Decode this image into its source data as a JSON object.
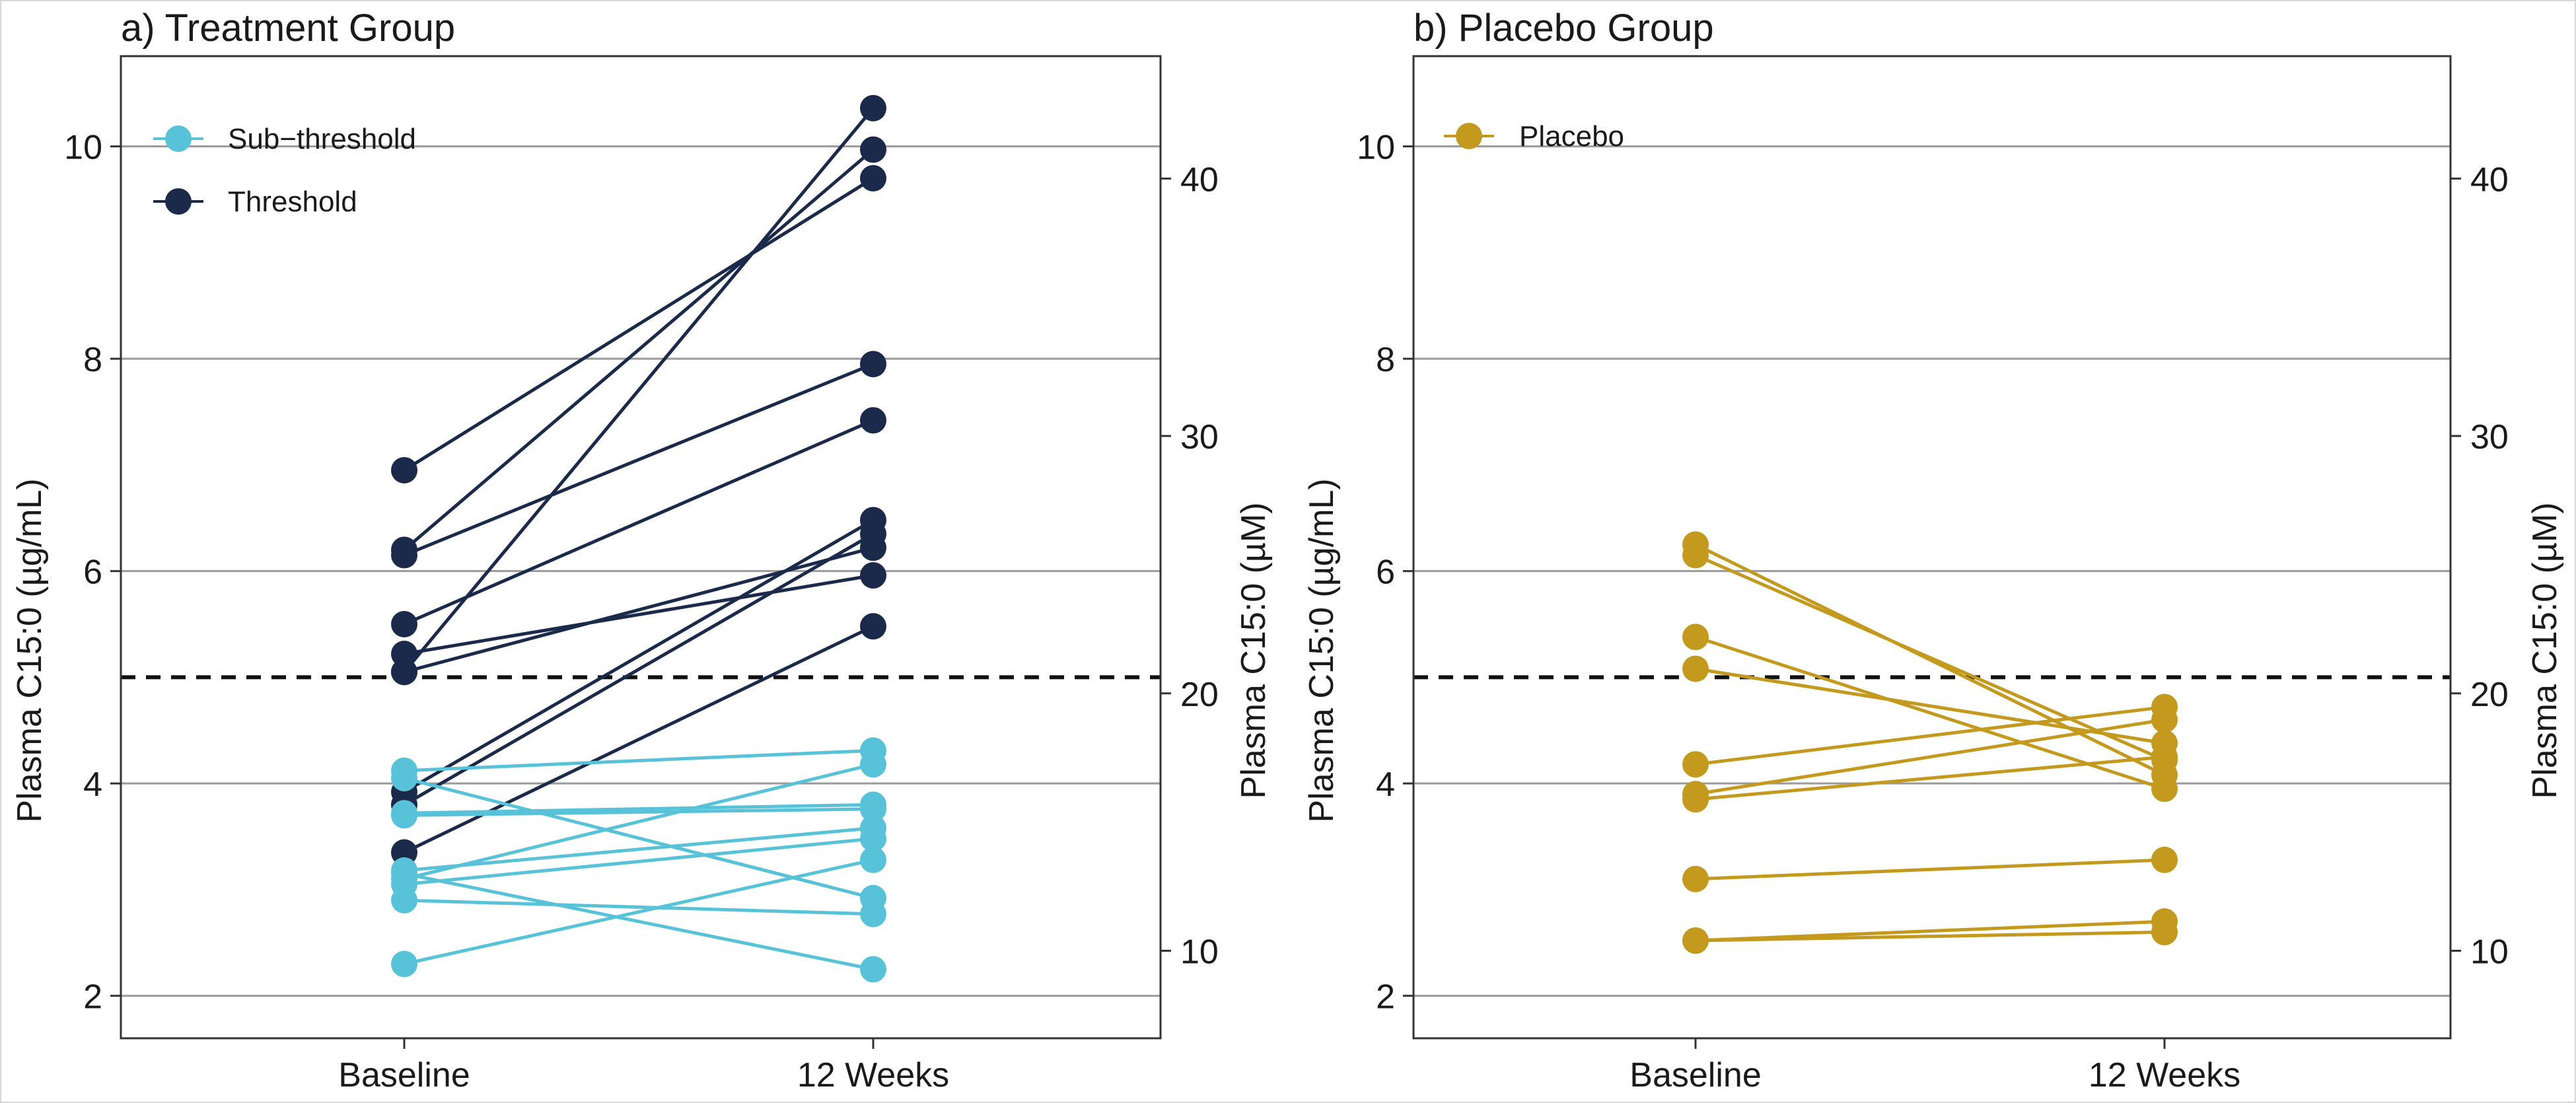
{
  "chart_data": [
    {
      "type": "line",
      "title": "a) Treatment Group",
      "xlabel": "",
      "ylabel": "Plasma C15:0 (µg/mL)",
      "ylabel_right": "Plasma C15:0 (µM)",
      "categories": [
        "Baseline",
        "12 Weeks"
      ],
      "ylim": [
        1.6,
        10.85
      ],
      "yticks": [
        2,
        4,
        6,
        8,
        10
      ],
      "yticks_right": [
        10,
        20,
        30,
        40
      ],
      "um_per_ugml": 4.125,
      "threshold_line": 5.0,
      "legend": [
        {
          "name": "Sub−threshold",
          "color": "#58C3D8"
        },
        {
          "name": "Threshold",
          "color": "#1B2A4A"
        }
      ],
      "series": [
        {
          "name": "Threshold",
          "color": "#1B2A4A",
          "pairs": [
            [
              6.95,
              9.7
            ],
            [
              6.2,
              9.97
            ],
            [
              6.15,
              7.95
            ],
            [
              5.5,
              7.42
            ],
            [
              5.22,
              5.96
            ],
            [
              5.05,
              10.36
            ],
            [
              5.05,
              6.22
            ],
            [
              3.92,
              6.48
            ],
            [
              3.8,
              6.35
            ],
            [
              3.35,
              5.48
            ]
          ]
        },
        {
          "name": "Sub−threshold",
          "color": "#58C3D8",
          "pairs": [
            [
              4.12,
              4.31
            ],
            [
              4.05,
              2.92
            ],
            [
              3.72,
              3.8
            ],
            [
              3.7,
              3.76
            ],
            [
              3.18,
              3.58
            ],
            [
              3.1,
              4.18
            ],
            [
              3.05,
              3.48
            ],
            [
              2.9,
              2.77
            ],
            [
              2.3,
              3.28
            ],
            [
              3.15,
              2.25
            ]
          ]
        }
      ]
    },
    {
      "type": "line",
      "title": "b) Placebo Group",
      "xlabel": "",
      "ylabel": "Plasma C15:0 (µg/mL)",
      "ylabel_right": "Plasma C15:0 (µM)",
      "categories": [
        "Baseline",
        "12 Weeks"
      ],
      "ylim": [
        1.6,
        10.85
      ],
      "yticks": [
        2,
        4,
        6,
        8,
        10
      ],
      "yticks_right": [
        10,
        20,
        30,
        40
      ],
      "um_per_ugml": 4.125,
      "threshold_line": 5.0,
      "legend": [
        {
          "name": "Placebo",
          "color": "#C39A1E"
        }
      ],
      "series": [
        {
          "name": "Placebo",
          "color": "#C39A1E",
          "pairs": [
            [
              6.25,
              4.08
            ],
            [
              6.15,
              4.22
            ],
            [
              5.38,
              3.95
            ],
            [
              5.08,
              4.38
            ],
            [
              4.18,
              4.72
            ],
            [
              3.9,
              4.6
            ],
            [
              3.85,
              4.25
            ],
            [
              3.1,
              3.28
            ],
            [
              2.52,
              2.7
            ],
            [
              2.52,
              2.6
            ]
          ]
        }
      ]
    }
  ]
}
